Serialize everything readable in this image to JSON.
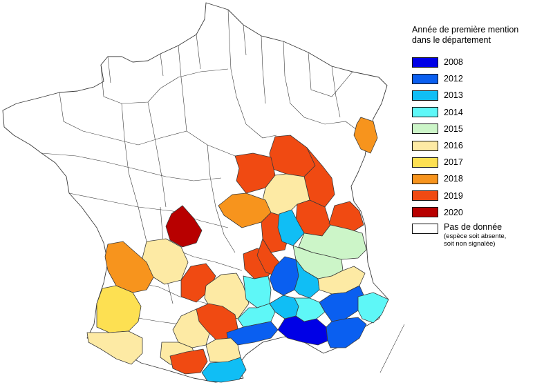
{
  "legend": {
    "title_line1": "Année de première mention",
    "title_line2": "dans le département",
    "items": [
      {
        "label": "2008",
        "color": "#0000e6"
      },
      {
        "label": "2012",
        "color": "#0a5ff0"
      },
      {
        "label": "2013",
        "color": "#10bef5"
      },
      {
        "label": "2014",
        "color": "#5ef7f7"
      },
      {
        "label": "2015",
        "color": "#ccf5c8"
      },
      {
        "label": "2016",
        "color": "#fdeaa4"
      },
      {
        "label": "2017",
        "color": "#fde052"
      },
      {
        "label": "2018",
        "color": "#f7941d"
      },
      {
        "label": "2019",
        "color": "#f04a12"
      },
      {
        "label": "2020",
        "color": "#b80000"
      }
    ],
    "nodata_label": "Pas de donnée",
    "nodata_note_line1": "(espèce soit absente,",
    "nodata_note_line2": "soit non signalée)"
  },
  "map": {
    "nodata_color": "#ffffff",
    "border_color": "#3a3a3a"
  }
}
